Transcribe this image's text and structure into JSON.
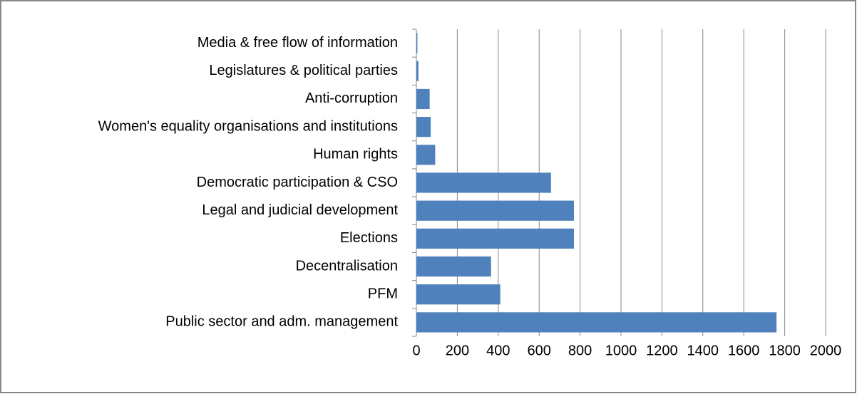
{
  "chart_data": {
    "type": "barh",
    "categories": [
      "Media & free flow of information",
      "Legislatures & political parties",
      "Anti-corruption",
      "Women's equality organisations and institutions",
      "Human rights",
      "Democratic participation & CSO",
      "Legal and judicial development",
      "Elections",
      "Decentralisation",
      "PFM",
      "Public sector and adm. management"
    ],
    "values": [
      5,
      10,
      65,
      70,
      92,
      658,
      770,
      770,
      365,
      410,
      1760
    ],
    "color": "#4f81bd",
    "xlim": [
      0,
      2000
    ],
    "xticks": [
      0,
      200,
      400,
      600,
      800,
      1000,
      1200,
      1400,
      1600,
      1800,
      2000
    ],
    "grid": true
  }
}
